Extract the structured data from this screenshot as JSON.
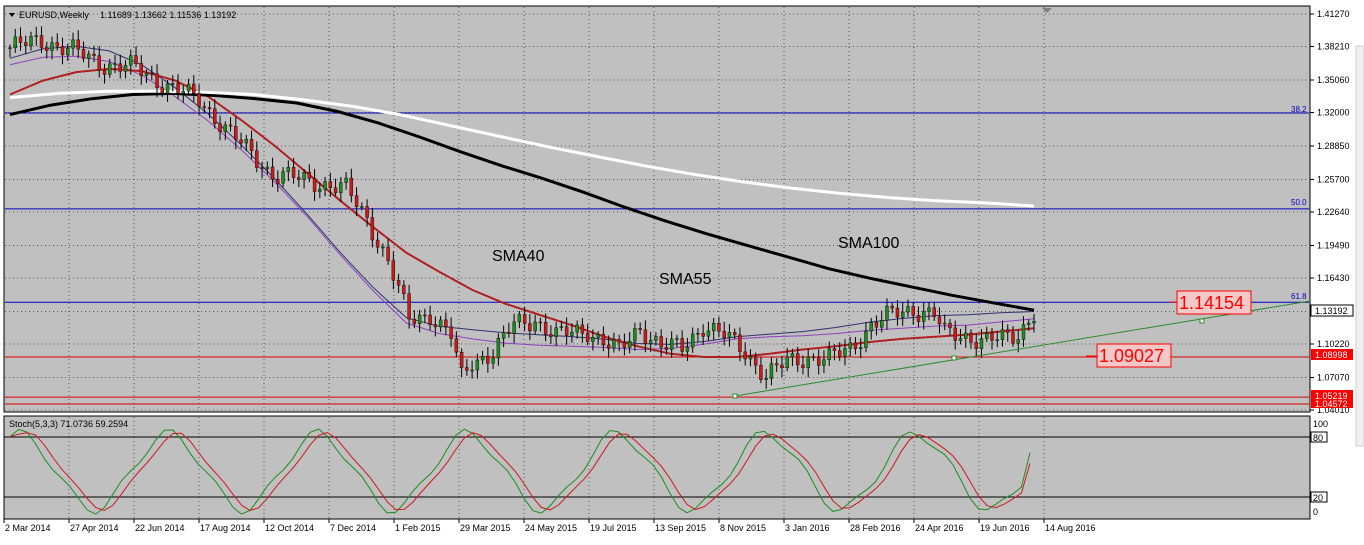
{
  "header": {
    "symbol": "EURUSD,Weekly",
    "ohlc": "1.11689 1.13662 1.11536 1.13192"
  },
  "price_axis": {
    "labels": [
      "1.41270",
      "1.38210",
      "1.35060",
      "1.32000",
      "1.28850",
      "1.25700",
      "1.22640",
      "1.19490",
      "1.16430",
      "1.13280",
      "1.10220",
      "1.07070",
      "1.04010"
    ],
    "current_price": "1.13192",
    "red_level_box": "1.08998",
    "red_box_2": "1.05219",
    "red_box_3": "1.04572"
  },
  "time_axis": {
    "labels": [
      "2 Mar 2014",
      "27 Apr 2014",
      "22 Jun 2014",
      "17 Aug 2014",
      "12 Oct 2014",
      "7 Dec 2014",
      "1 Feb 2015",
      "29 Mar 2015",
      "24 May 2015",
      "19 Jul 2015",
      "13 Sep 2015",
      "8 Nov 2015",
      "3 Jan 2016",
      "28 Feb 2016",
      "24 Apr 2016",
      "19 Jun 2016",
      "14 Aug 2016"
    ]
  },
  "annotations": {
    "sma40": "SMA40",
    "sma55": "SMA55",
    "sma100": "SMA100",
    "fib_38": "38.2",
    "fib_50": "50.0",
    "fib_61": "61.8",
    "box_upper": "1.14154",
    "box_lower": "1.09027"
  },
  "stoch": {
    "title": "Stoch(5,3,3) 71.0736 59.2594",
    "labels": [
      "100",
      "80",
      "20",
      "0"
    ]
  },
  "colors": {
    "bull": "#1e8c1e",
    "bear": "#cc1a1a",
    "sma_white": "#ffffff",
    "sma_black": "#000000",
    "sma_red": "#b02020",
    "sma_navy": "#303070",
    "sma_violet": "#9040c0",
    "fib_blue": "#0000c0",
    "level_red": "#e00000",
    "trend_green": "#2e8b2e"
  },
  "chart_data": [
    {
      "type": "candlestick",
      "title": "EURUSD,Weekly",
      "timeframe": "Weekly",
      "x_range": [
        "2 Mar 2014",
        "14 Aug 2016"
      ],
      "ylim": [
        1.0401,
        1.4127
      ],
      "last": {
        "open": 1.11689,
        "high": 1.13662,
        "low": 1.11536,
        "close": 1.13192
      },
      "series": [
        {
          "name": "SMA40",
          "values": [
            1.365,
            1.372,
            1.373,
            1.368,
            1.355,
            1.335,
            1.312,
            1.285,
            1.255,
            1.222,
            1.186,
            1.152,
            1.122,
            1.112,
            1.107,
            1.103,
            1.101,
            1.1,
            1.099,
            1.097,
            1.098,
            1.102,
            1.107,
            1.109,
            1.11,
            1.112,
            1.115,
            1.117,
            1.119,
            1.12,
            1.123,
            1.126
          ]
        },
        {
          "name": "SMA55",
          "values": [
            1.337,
            1.35,
            1.358,
            1.361,
            1.359,
            1.35,
            1.335,
            1.313,
            1.289,
            1.263,
            1.237,
            1.212,
            1.188,
            1.17,
            1.153,
            1.14,
            1.13,
            1.12,
            1.109,
            1.1,
            1.093,
            1.09,
            1.09,
            1.093,
            1.097,
            1.1,
            1.104,
            1.107,
            1.109,
            1.111,
            1.114,
            1.117
          ]
        },
        {
          "name": "SMA100",
          "values": [
            1.318,
            1.327,
            1.333,
            1.337,
            1.338,
            1.336,
            1.333,
            1.329,
            1.321,
            1.31,
            1.297,
            1.283,
            1.27,
            1.258,
            1.245,
            1.231,
            1.218,
            1.206,
            1.195,
            1.184,
            1.173,
            1.164,
            1.156,
            1.148,
            1.141,
            1.134
          ]
        }
      ],
      "levels": [
        {
          "label": "38.2",
          "value": 1.3195
        },
        {
          "label": "50.0",
          "value": 1.2293
        },
        {
          "label": "61.8",
          "value": 1.1415
        },
        {
          "label": "1.08998",
          "value": 1.08998
        },
        {
          "label": "1.05219",
          "value": 1.05219
        },
        {
          "label": "1.04572",
          "value": 1.04572
        }
      ]
    },
    {
      "type": "line",
      "title": "Stoch(5,3,3) 71.0736 59.2594",
      "ylim": [
        0,
        100
      ],
      "levels": [
        20,
        80
      ],
      "series": [
        {
          "name": "%K",
          "last": 71.0736
        },
        {
          "name": "%D",
          "last": 59.2594
        }
      ]
    }
  ]
}
